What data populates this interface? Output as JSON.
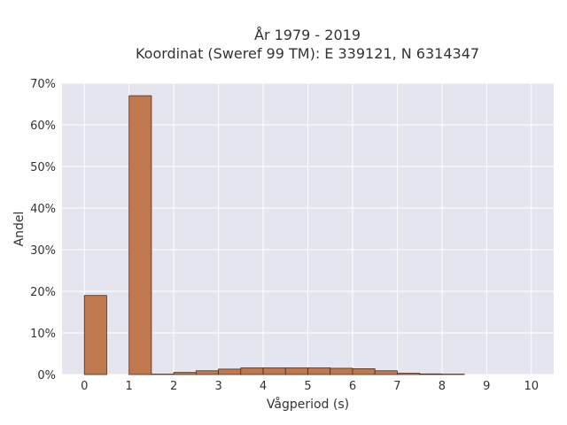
{
  "chart_data": {
    "type": "bar",
    "title_lines": [
      "År 1979 - 2019",
      "Koordinat (Sweref 99 TM): E 339121, N 6314347"
    ],
    "xlabel": "Vågperiod (s)",
    "ylabel": "Andel",
    "xlim": [
      -0.5,
      10.5
    ],
    "ylim": [
      0,
      70
    ],
    "x_ticks": [
      0,
      1,
      2,
      3,
      4,
      5,
      6,
      7,
      8,
      9,
      10
    ],
    "y_ticks": [
      0,
      10,
      20,
      30,
      40,
      50,
      60,
      70
    ],
    "y_tick_suffix": "%",
    "grid": true,
    "bar_color": "#c0784e",
    "bar_edge_color": "#4a2e1e",
    "plot_bg": "#e5e5ef",
    "bins": [
      {
        "start": 0.0,
        "end": 0.5,
        "value": 19.0
      },
      {
        "start": 0.5,
        "end": 1.0,
        "value": 0.0
      },
      {
        "start": 1.0,
        "end": 1.5,
        "value": 67.0
      },
      {
        "start": 1.5,
        "end": 2.0,
        "value": 0.1
      },
      {
        "start": 2.0,
        "end": 2.5,
        "value": 0.5
      },
      {
        "start": 2.5,
        "end": 3.0,
        "value": 0.9
      },
      {
        "start": 3.0,
        "end": 3.5,
        "value": 1.3
      },
      {
        "start": 3.5,
        "end": 4.0,
        "value": 1.6
      },
      {
        "start": 4.0,
        "end": 4.5,
        "value": 1.6
      },
      {
        "start": 4.5,
        "end": 5.0,
        "value": 1.6
      },
      {
        "start": 5.0,
        "end": 5.5,
        "value": 1.6
      },
      {
        "start": 5.5,
        "end": 6.0,
        "value": 1.5
      },
      {
        "start": 6.0,
        "end": 6.5,
        "value": 1.4
      },
      {
        "start": 6.5,
        "end": 7.0,
        "value": 0.9
      },
      {
        "start": 7.0,
        "end": 7.5,
        "value": 0.3
      },
      {
        "start": 7.5,
        "end": 8.0,
        "value": 0.15
      },
      {
        "start": 8.0,
        "end": 8.5,
        "value": 0.1
      }
    ]
  }
}
